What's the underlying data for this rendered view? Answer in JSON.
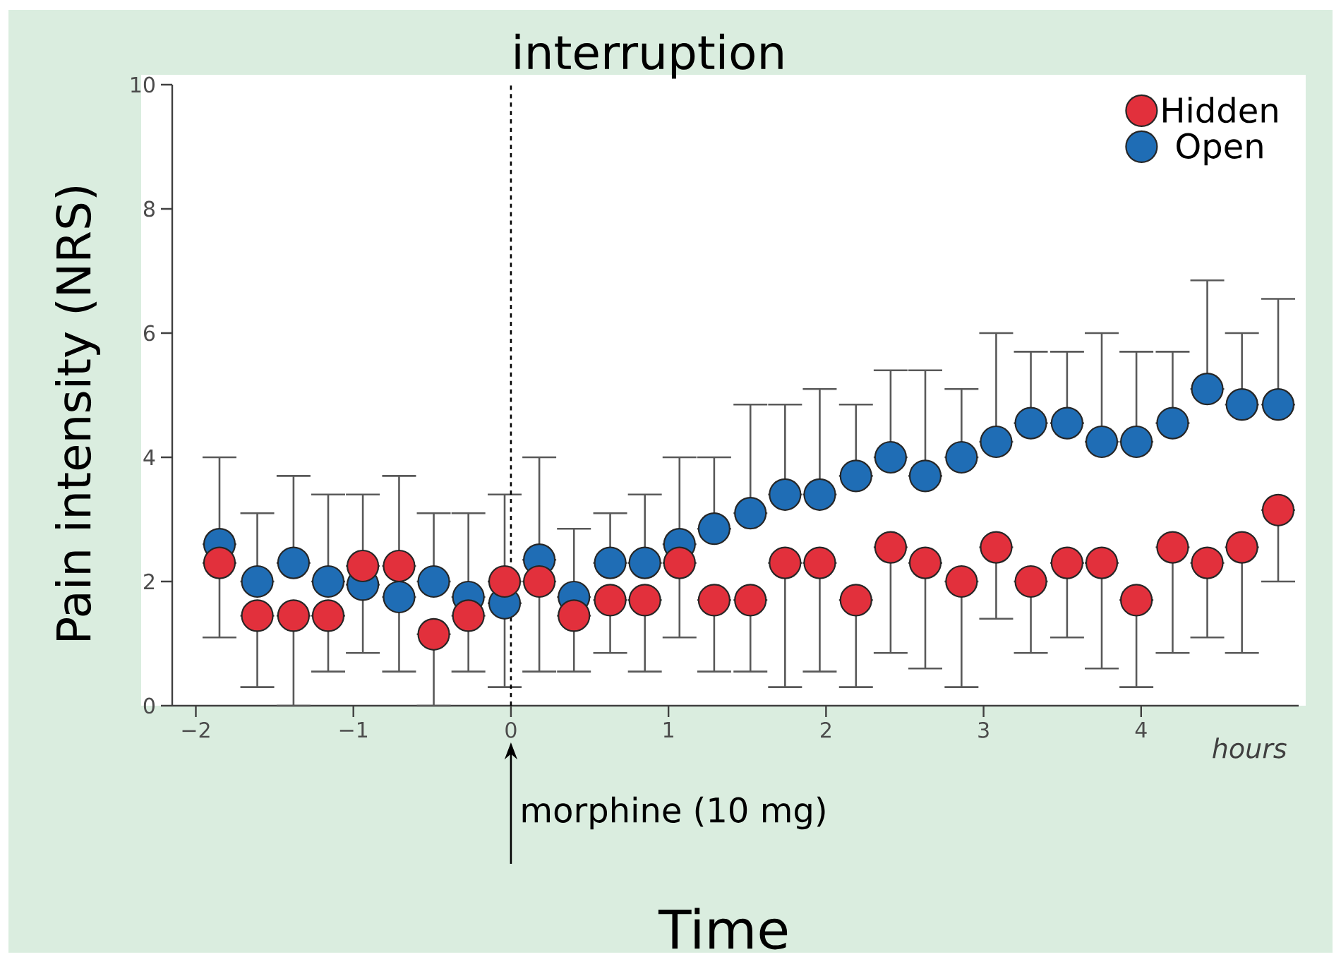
{
  "chart_data": {
    "type": "scatter",
    "xlabel": "Time",
    "ylabel": "Pain intensity (NRS)",
    "x": [
      -1.85,
      -1.61,
      -1.38,
      -1.16,
      -0.94,
      -0.71,
      -0.49,
      -0.27,
      -0.04,
      0.18,
      0.4,
      0.63,
      0.85,
      1.07,
      1.29,
      1.52,
      1.74,
      1.96,
      2.19,
      2.41,
      2.63,
      2.86,
      3.08,
      3.3,
      3.53,
      3.75,
      3.97,
      4.2,
      4.42,
      4.64,
      4.87
    ],
    "series": [
      {
        "name": "Hidden",
        "color": "#e2303c",
        "values": [
          2.3,
          1.45,
          1.45,
          1.45,
          2.25,
          2.25,
          1.15,
          1.45,
          2.0,
          2.0,
          1.45,
          1.7,
          1.7,
          2.3,
          1.7,
          1.7,
          2.3,
          2.3,
          1.7,
          2.55,
          2.3,
          2.0,
          2.55,
          2.0,
          2.3,
          2.3,
          1.7,
          2.55,
          2.3,
          2.55,
          3.15
        ],
        "errors": [
          [
            1.1,
            2.3
          ],
          [
            0.3,
            1.45
          ],
          [
            0,
            1.45
          ],
          [
            0.55,
            1.45
          ],
          [
            0.85,
            2.25
          ],
          [
            0.55,
            2.25
          ],
          [
            0,
            1.15
          ],
          [
            0.55,
            1.45
          ],
          [
            0.3,
            2.0
          ],
          [
            0.55,
            2.0
          ],
          [
            0.55,
            1.45
          ],
          [
            0.85,
            1.7
          ],
          [
            0.55,
            1.7
          ],
          [
            1.1,
            2.3
          ],
          [
            0.55,
            1.7
          ],
          [
            0.55,
            1.7
          ],
          [
            0.3,
            2.3
          ],
          [
            0.55,
            2.3
          ],
          [
            0.3,
            1.7
          ],
          [
            0.85,
            2.55
          ],
          [
            0.6,
            2.3
          ],
          [
            0.3,
            2.0
          ],
          [
            1.4,
            2.55
          ],
          [
            0.85,
            2.0
          ],
          [
            1.1,
            2.3
          ],
          [
            0.6,
            2.3
          ],
          [
            0.3,
            1.7
          ],
          [
            0.85,
            2.55
          ],
          [
            1.1,
            2.3
          ],
          [
            0.85,
            2.55
          ],
          [
            2.0,
            3.15
          ]
        ]
      },
      {
        "name": "Open",
        "color": "#1f6db5",
        "values": [
          2.6,
          2.0,
          2.3,
          2.0,
          1.95,
          1.75,
          2.0,
          1.75,
          1.65,
          2.35,
          1.75,
          2.3,
          2.3,
          2.6,
          2.85,
          3.1,
          3.4,
          3.4,
          3.7,
          4.0,
          3.7,
          4.0,
          4.25,
          4.55,
          4.55,
          4.25,
          4.25,
          4.55,
          5.1,
          4.85,
          4.85
        ],
        "errors": [
          [
            2.6,
            4.0
          ],
          [
            2.0,
            3.1
          ],
          [
            2.3,
            3.7
          ],
          [
            2.0,
            3.4
          ],
          [
            1.95,
            3.4
          ],
          [
            1.75,
            3.7
          ],
          [
            2.0,
            3.1
          ],
          [
            1.75,
            3.1
          ],
          [
            1.65,
            3.4
          ],
          [
            2.35,
            4.0
          ],
          [
            1.75,
            2.85
          ],
          [
            2.3,
            3.1
          ],
          [
            2.3,
            3.4
          ],
          [
            2.6,
            4.0
          ],
          [
            2.85,
            4.0
          ],
          [
            3.1,
            4.85
          ],
          [
            3.4,
            4.85
          ],
          [
            3.4,
            5.1
          ],
          [
            3.7,
            4.85
          ],
          [
            4.0,
            5.4
          ],
          [
            3.7,
            5.4
          ],
          [
            4.0,
            5.1
          ],
          [
            4.25,
            6.0
          ],
          [
            4.55,
            5.7
          ],
          [
            4.55,
            5.7
          ],
          [
            4.25,
            6.0
          ],
          [
            4.25,
            5.7
          ],
          [
            4.55,
            5.7
          ],
          [
            5.1,
            6.85
          ],
          [
            4.85,
            6.0
          ],
          [
            4.85,
            6.55
          ]
        ]
      }
    ],
    "xlim": [
      -2.15,
      5.0
    ],
    "ylim": [
      0,
      10
    ],
    "xticks": [
      {
        "value": -2,
        "label": "−2"
      },
      {
        "value": -1,
        "label": "−1"
      },
      0,
      1,
      2,
      3,
      4
    ],
    "yticks": [
      0,
      2,
      4,
      6,
      8,
      10
    ],
    "ref_lines": [
      {
        "axis": "x",
        "value": 0,
        "label": "interruption",
        "color": "#000000",
        "line_style": "dashed"
      }
    ],
    "annotations": [
      "morphine (10 mg)",
      "hours"
    ],
    "marker": "circle",
    "legend": "top right",
    "grid": false
  }
}
